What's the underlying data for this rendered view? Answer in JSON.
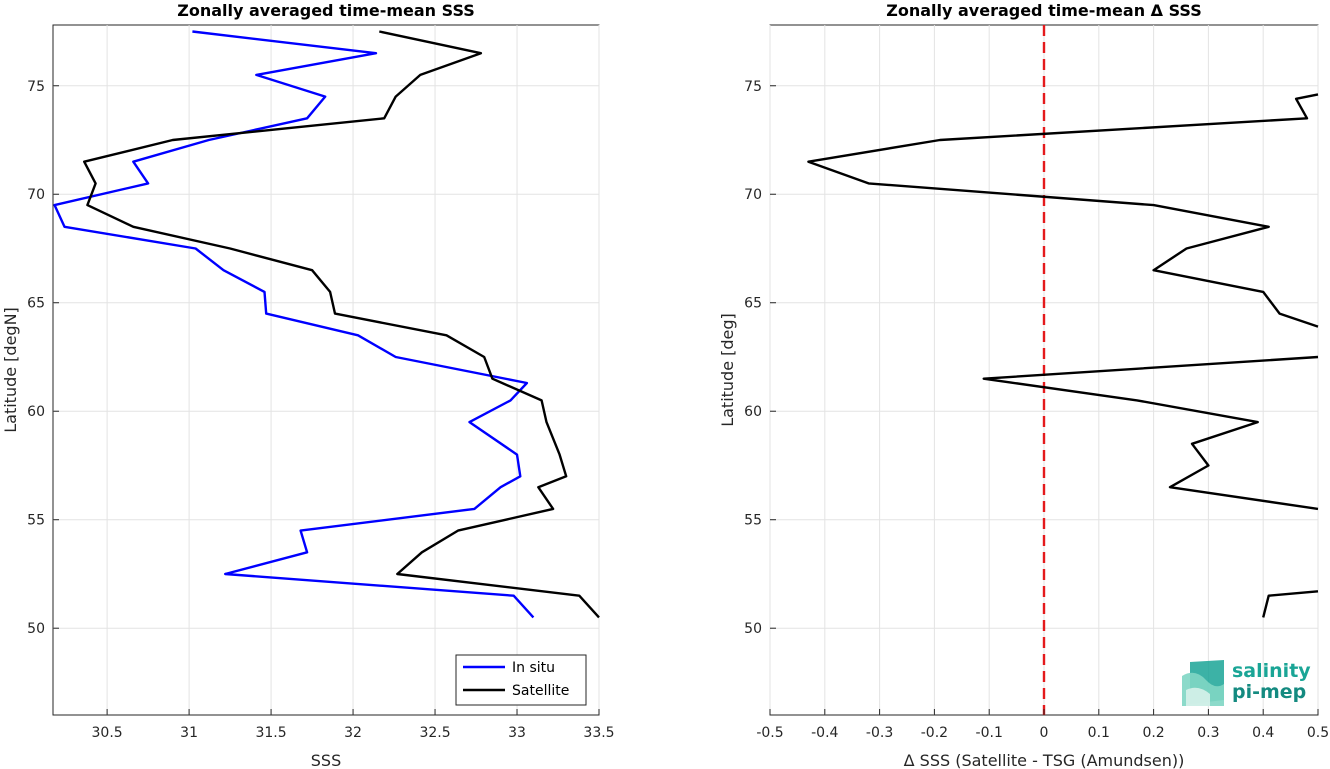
{
  "chart_data": [
    {
      "type": "line",
      "title": "Zonally averaged time-mean SSS",
      "xlabel": "SSS",
      "ylabel": "Latitude [degN]",
      "xlim": [
        30.17,
        33.5
      ],
      "ylim": [
        46.0,
        77.8
      ],
      "xticks": [
        "30.5",
        "31",
        "31.5",
        "32",
        "32.5",
        "33",
        "33.5"
      ],
      "xtick_values": [
        30.5,
        31,
        31.5,
        32,
        32.5,
        33,
        33.5
      ],
      "yticks": [
        "50",
        "55",
        "60",
        "65",
        "70",
        "75"
      ],
      "ytick_values": [
        50,
        55,
        60,
        65,
        70,
        75
      ],
      "grid": true,
      "legend": {
        "position": "bottom-right",
        "entries": [
          "In situ",
          "Satellite"
        ]
      },
      "series": [
        {
          "name": "In situ",
          "color": "#0000ff",
          "points": [
            [
              31.02,
              77.5
            ],
            [
              32.14,
              76.5
            ],
            [
              31.41,
              75.5
            ],
            [
              31.83,
              74.5
            ],
            [
              31.72,
              73.5
            ],
            [
              31.12,
              72.5
            ],
            [
              30.66,
              71.5
            ],
            [
              30.75,
              70.5
            ],
            [
              30.18,
              69.5
            ],
            [
              30.24,
              68.5
            ],
            [
              31.04,
              67.5
            ],
            [
              31.21,
              66.5
            ],
            [
              31.46,
              65.5
            ],
            [
              31.47,
              64.5
            ],
            [
              32.03,
              63.5
            ],
            [
              32.26,
              62.5
            ],
            [
              33.06,
              61.3
            ],
            [
              32.96,
              60.5
            ],
            [
              32.71,
              59.5
            ],
            [
              33.0,
              58.0
            ],
            [
              33.02,
              57.0
            ],
            [
              32.9,
              56.5
            ],
            [
              32.74,
              55.5
            ],
            [
              31.68,
              54.5
            ],
            [
              31.72,
              53.5
            ],
            [
              31.22,
              52.5
            ],
            [
              32.98,
              51.5
            ],
            [
              33.1,
              50.5
            ]
          ]
        },
        {
          "name": "Satellite",
          "color": "#000000",
          "points": [
            [
              32.16,
              77.5
            ],
            [
              32.78,
              76.5
            ],
            [
              32.41,
              75.5
            ],
            [
              32.26,
              74.5
            ],
            [
              32.19,
              73.5
            ],
            [
              30.9,
              72.5
            ],
            [
              30.36,
              71.5
            ],
            [
              30.43,
              70.5
            ],
            [
              30.38,
              69.5
            ],
            [
              30.66,
              68.5
            ],
            [
              31.25,
              67.5
            ],
            [
              31.75,
              66.5
            ],
            [
              31.86,
              65.5
            ],
            [
              31.89,
              64.5
            ],
            [
              32.57,
              63.5
            ],
            [
              32.8,
              62.5
            ],
            [
              32.85,
              61.5
            ],
            [
              33.15,
              60.5
            ],
            [
              33.18,
              59.5
            ],
            [
              33.26,
              58.0
            ],
            [
              33.3,
              57.0
            ],
            [
              33.13,
              56.5
            ],
            [
              33.22,
              55.5
            ],
            [
              32.64,
              54.5
            ],
            [
              32.42,
              53.5
            ],
            [
              32.27,
              52.5
            ],
            [
              33.38,
              51.5
            ],
            [
              33.5,
              50.5
            ]
          ]
        }
      ]
    },
    {
      "type": "line",
      "title": "Zonally averaged time-mean Δ SSS",
      "xlabel": "Δ SSS (Satellite - TSG (Amundsen))",
      "ylabel": "Latitude [deg]",
      "xlim": [
        -0.5,
        0.5
      ],
      "ylim": [
        46.0,
        77.8
      ],
      "xticks": [
        "-0.5",
        "-0.4",
        "-0.3",
        "-0.2",
        "-0.1",
        "0",
        "0.1",
        "0.2",
        "0.3",
        "0.4",
        "0.5"
      ],
      "xtick_values": [
        -0.5,
        -0.4,
        -0.3,
        -0.2,
        -0.1,
        0,
        0.1,
        0.2,
        0.3,
        0.4,
        0.5
      ],
      "yticks": [
        "50",
        "55",
        "60",
        "65",
        "70",
        "75"
      ],
      "ytick_values": [
        50,
        55,
        60,
        65,
        70,
        75
      ],
      "grid": true,
      "reference_line": {
        "x": 0,
        "color": "#e41a1c",
        "style": "dashed"
      },
      "series": [
        {
          "color": "#000000",
          "points": [
            [
              0.5,
              74.6
            ],
            [
              0.46,
              74.4
            ],
            [
              0.48,
              73.5
            ],
            [
              -0.19,
              72.5
            ],
            [
              -0.43,
              71.5
            ],
            [
              -0.32,
              70.5
            ],
            [
              0.2,
              69.5
            ],
            [
              0.41,
              68.5
            ],
            [
              0.26,
              67.5
            ],
            [
              0.2,
              66.5
            ],
            [
              0.4,
              65.5
            ],
            [
              0.43,
              64.5
            ],
            [
              0.5,
              63.9
            ]
          ]
        },
        {
          "color": "#000000",
          "points": [
            [
              0.5,
              62.5
            ],
            [
              -0.11,
              61.5
            ],
            [
              0.17,
              60.5
            ],
            [
              0.39,
              59.5
            ],
            [
              0.27,
              58.5
            ],
            [
              0.3,
              57.5
            ],
            [
              0.23,
              56.5
            ],
            [
              0.5,
              55.5
            ]
          ]
        },
        {
          "color": "#000000",
          "points": [
            [
              0.5,
              51.7
            ],
            [
              0.41,
              51.5
            ],
            [
              0.4,
              50.5
            ]
          ]
        }
      ]
    }
  ],
  "logo": {
    "line1": "salinity",
    "line2": "pi-mep",
    "colors": [
      "#1aa596",
      "#148a80",
      "#7fd6c4"
    ]
  }
}
